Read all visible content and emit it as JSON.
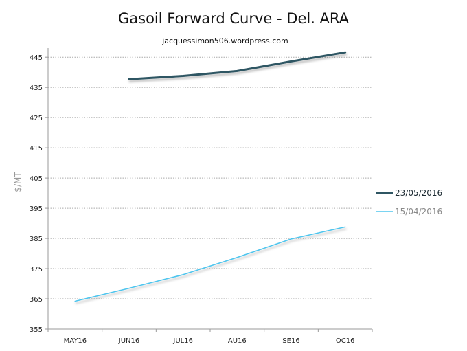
{
  "chart_data": {
    "type": "line",
    "title": "Gasoil Forward Curve - Del. ARA",
    "subtitle": "jacquessimon506.wordpress.com",
    "ylabel": "$/MT",
    "xlabel": "",
    "categories": [
      "MAY16",
      "JUN16",
      "JUL16",
      "AU16",
      "SE16",
      "OC16"
    ],
    "yticks": [
      355,
      365,
      375,
      385,
      395,
      405,
      415,
      425,
      435,
      445
    ],
    "ylim": [
      355,
      448
    ],
    "grid": true,
    "legend_position": "right",
    "series": [
      {
        "name": "23/05/2016",
        "color": "#2f5663",
        "values": [
          null,
          437.7,
          438.8,
          440.4,
          443.6,
          446.6
        ]
      },
      {
        "name": "15/04/2016",
        "color": "#4ec5ee",
        "values": [
          364.2,
          368.5,
          373.0,
          378.7,
          384.8,
          388.8
        ]
      }
    ]
  }
}
